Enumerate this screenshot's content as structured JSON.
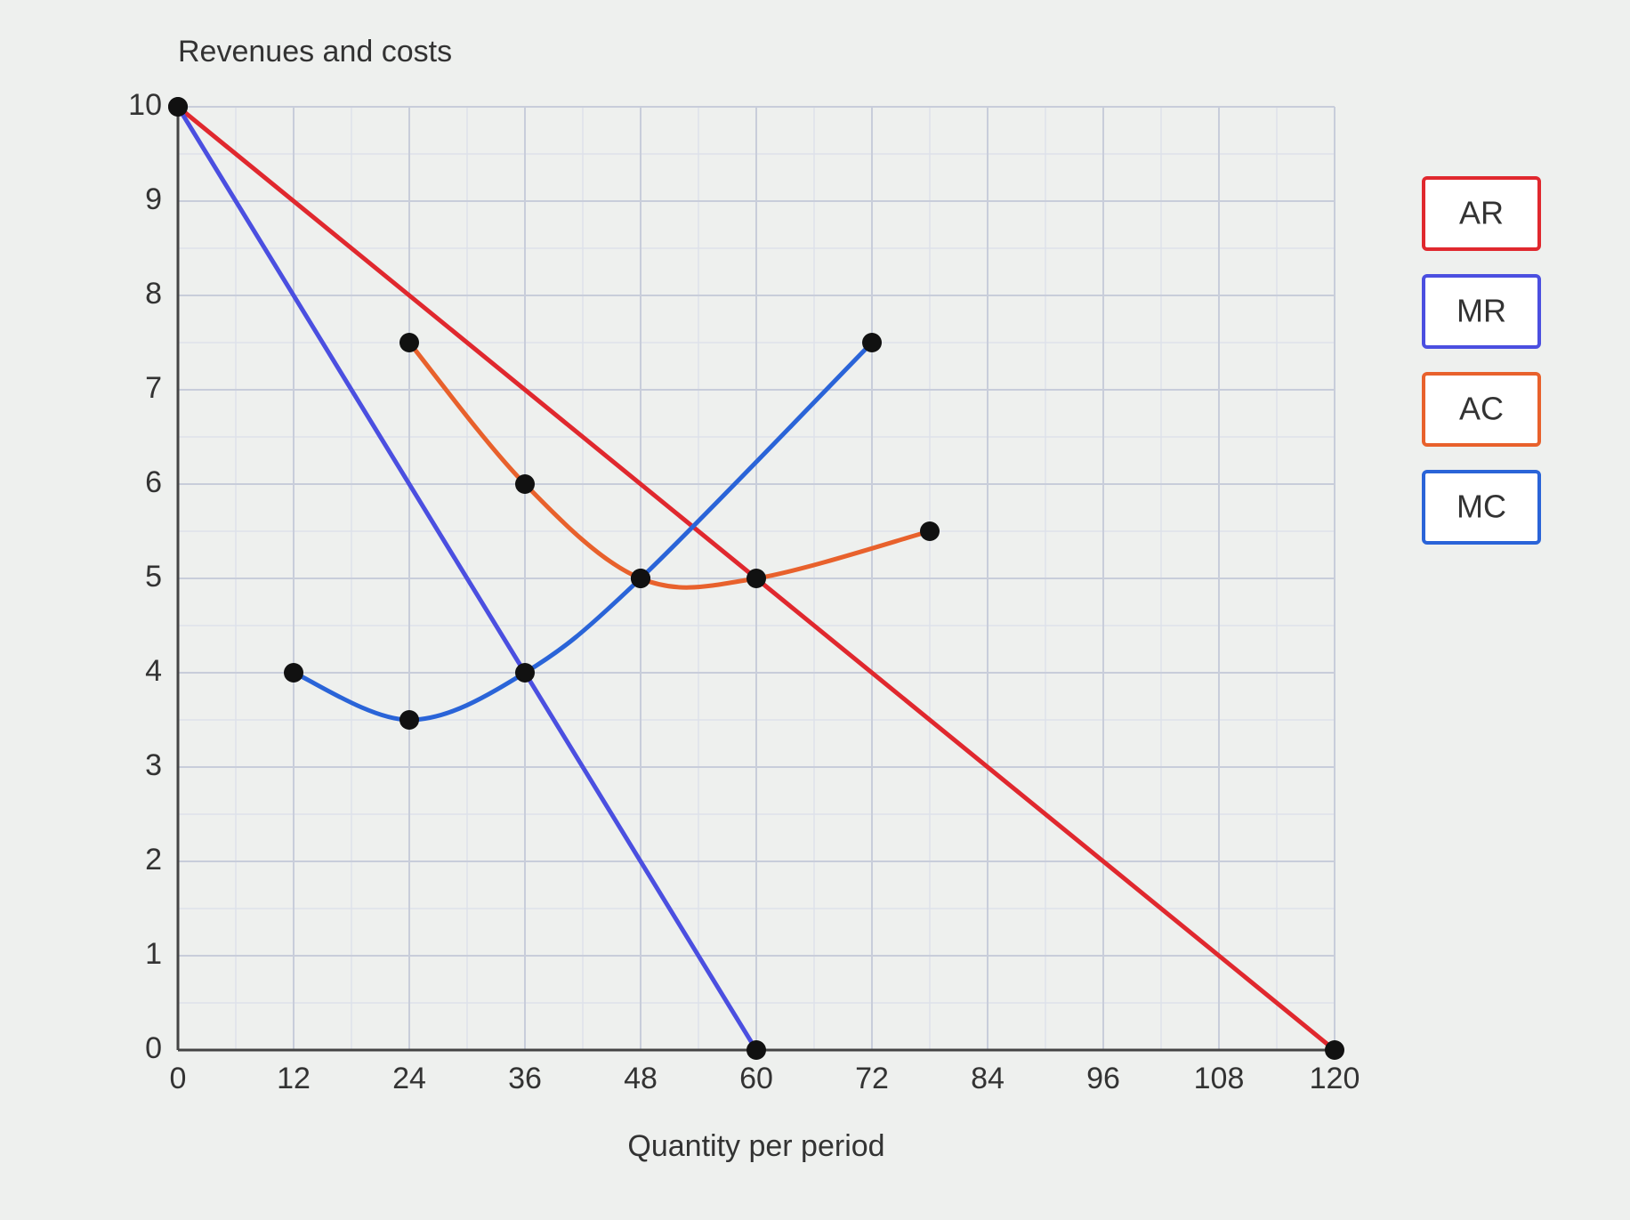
{
  "chart_data": {
    "type": "line",
    "y_label": "Revenues and costs",
    "x_label": "Quantity per period",
    "xlim": [
      0,
      120
    ],
    "ylim": [
      0,
      10
    ],
    "xticks": [
      0,
      12,
      24,
      36,
      48,
      60,
      72,
      84,
      96,
      108,
      120
    ],
    "yticks": [
      0,
      1,
      2,
      3,
      4,
      5,
      6,
      7,
      8,
      9,
      10
    ],
    "grid": true,
    "legend": "right",
    "series": [
      {
        "name": "AR",
        "color": "#e0282e",
        "smooth": false,
        "x": [
          0,
          120
        ],
        "values": [
          10,
          0
        ]
      },
      {
        "name": "MR",
        "color": "#4b4fe0",
        "smooth": false,
        "x": [
          0,
          60
        ],
        "values": [
          10,
          0
        ]
      },
      {
        "name": "AC",
        "color": "#e8612c",
        "smooth": true,
        "x": [
          24,
          36,
          48,
          60,
          78
        ],
        "values": [
          7.5,
          6,
          5,
          5,
          5.5
        ]
      },
      {
        "name": "MC",
        "color": "#2a64d8",
        "smooth": true,
        "x": [
          12,
          24,
          36,
          48,
          72
        ],
        "values": [
          4,
          3.5,
          4,
          5,
          7.5
        ]
      }
    ]
  }
}
